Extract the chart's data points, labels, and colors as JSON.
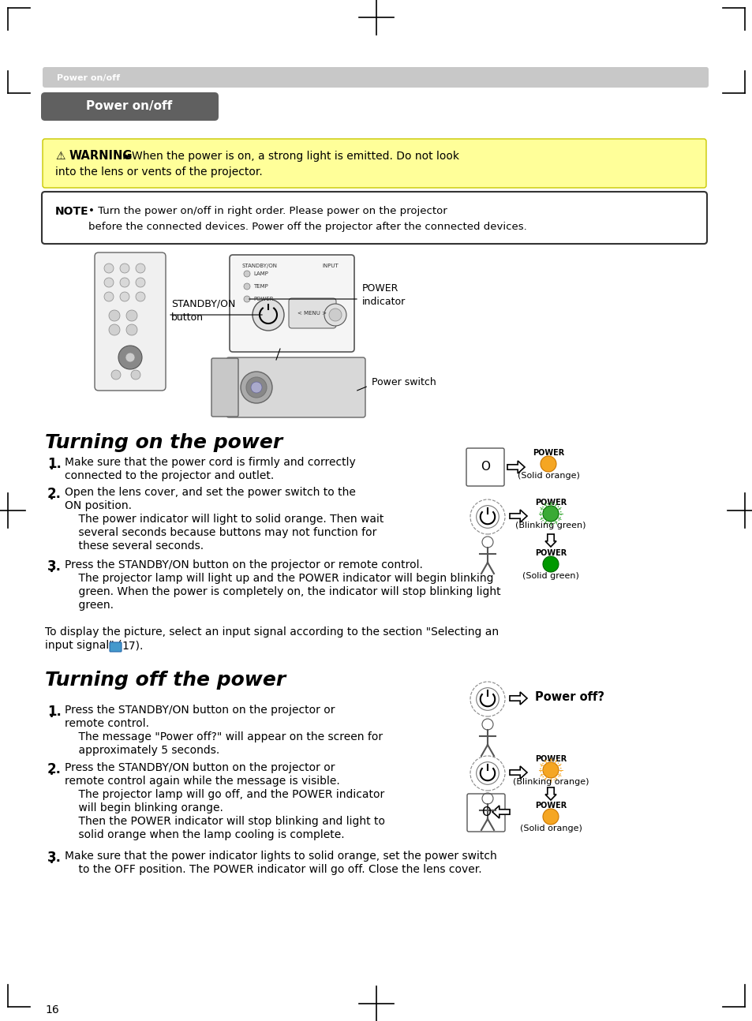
{
  "page_bg": "#ffffff",
  "header_bar_color": "#c0c0c0",
  "header_text": "Power on/off",
  "title_box_text": "Power on/off",
  "warning_text_bold": "WARNING",
  "warning_line1": "When the power is on, a strong light is emitted. Do not look",
  "warning_line2": "into the lens or vents of the projector.",
  "note_bold": "NOTE",
  "note_line1": "• Turn the power on/off in right order. Please power on the projector",
  "note_line2": "before the connected devices. Power off the projector after the connected devices.",
  "label_standby_on_button": "STANDBY/ON\nbutton",
  "label_power_indicator": "POWER\nindicator",
  "label_power_switch": "Power switch",
  "section1_title": "Turning on the power",
  "s1_step1_a": "Make sure that the power cord is firmly and correctly",
  "s1_step1_b": "connected to the projector and outlet.",
  "s1_step2_a": "Open the lens cover, and set the power switch to the",
  "s1_step2_b": "ON position.",
  "s1_step2_c": "    The power indicator will light to solid orange. Then wait",
  "s1_step2_d": "    several seconds because buttons may not function for",
  "s1_step2_e": "    these several seconds.",
  "s1_step3_a": "Press the STANDBY/ON button on the projector or remote control.",
  "s1_step3_b": "    The projector lamp will light up and the POWER indicator will begin blinking",
  "s1_step3_c": "    green. When the power is completely on, the indicator will stop blinking light",
  "s1_step3_d": "    green.",
  "display_line1": "To display the picture, select an input signal according to the section \"Selecting an",
  "display_line2": "input signal\" (",
  "display_line2b": "17).",
  "section2_title": "Turning off the power",
  "power_off_label": "Power off?",
  "s2_step1_a": "Press the STANDBY/ON button on the projector or",
  "s2_step1_b": "remote control.",
  "s2_step1_c": "    The message \"Power off?\" will appear on the screen for",
  "s2_step1_d": "    approximately 5 seconds.",
  "s2_step2_a": "Press the STANDBY/ON button on the projector or",
  "s2_step2_b": "remote control again while the message is visible.",
  "s2_step2_c": "    The projector lamp will go off, and the POWER indicator",
  "s2_step2_d": "    will begin blinking orange.",
  "s2_step2_e": "    Then the POWER indicator will stop blinking and light to",
  "s2_step2_f": "    solid orange when the lamp cooling is complete.",
  "s2_step3_a": "Make sure that the power indicator lights to solid orange, set the power switch",
  "s2_step3_b": "    to the OFF position. The POWER indicator will go off. Close the lens cover.",
  "page_number": "16",
  "col_orange": "#f5a623",
  "col_orange_edge": "#cc7700",
  "col_green_blink": "#3aaa35",
  "col_green_solid": "#009900",
  "col_green_edge": "#006600"
}
